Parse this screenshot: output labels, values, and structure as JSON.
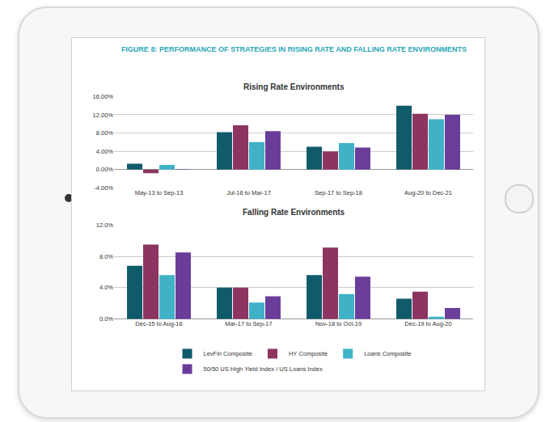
{
  "figure_title": "FIGURE 8: PERFORMANCE OF STRATEGIES IN RISING RATE AND FALLING RATE ENVIRONMENTS",
  "chart_data": [
    {
      "type": "bar",
      "title": "Rising Rate Environments",
      "categories": [
        "May-13 to Sep-13",
        "Jul-16 to Mar-17",
        "Sep-17 to Sep-18",
        "Aug-20 to Dec-21"
      ],
      "series": [
        {
          "name": "LevFin Composite",
          "color": "#0f5a6b",
          "values": [
            1.3,
            8.2,
            5.0,
            14.0
          ]
        },
        {
          "name": "HY Composite",
          "color": "#8c3560",
          "values": [
            -0.8,
            9.7,
            4.0,
            12.2
          ]
        },
        {
          "name": "Loans Composite",
          "color": "#3fb2c8",
          "values": [
            1.0,
            6.0,
            5.8,
            11.0
          ]
        },
        {
          "name": "50/50 US High Yield Index / US Loans Index",
          "color": "#6a3d9a",
          "values": [
            0.1,
            8.4,
            4.8,
            12.0
          ]
        }
      ],
      "ylim": [
        -4,
        16
      ],
      "yticks": [
        {
          "value": -4,
          "label": "-4.00%"
        },
        {
          "value": 0,
          "label": "0.00%"
        },
        {
          "value": 4,
          "label": "4.00%"
        },
        {
          "value": 8,
          "label": "8.00%"
        },
        {
          "value": 12,
          "label": "12.00%"
        },
        {
          "value": 16,
          "label": "16.00%"
        }
      ],
      "grid": true
    },
    {
      "type": "bar",
      "title": "Falling Rate Environments",
      "categories": [
        "Dec-15 to Aug-16",
        "Mar-17 to Sep-17",
        "Nov-18 to Oct-19",
        "Dec-19 to Aug-20"
      ],
      "series": [
        {
          "name": "LevFin Composite",
          "color": "#0f5a6b",
          "values": [
            6.8,
            4.0,
            5.6,
            2.6
          ]
        },
        {
          "name": "HY Composite",
          "color": "#8c3560",
          "values": [
            9.5,
            4.0,
            9.1,
            3.5
          ]
        },
        {
          "name": "Loans Composite",
          "color": "#3fb2c8",
          "values": [
            5.6,
            2.1,
            3.2,
            0.3
          ]
        },
        {
          "name": "50/50 US High Yield Index / US Loans Index",
          "color": "#6a3d9a",
          "values": [
            8.5,
            2.9,
            5.4,
            1.4
          ]
        }
      ],
      "ylim": [
        0,
        12
      ],
      "yticks": [
        {
          "value": 0,
          "label": "0.0%"
        },
        {
          "value": 4,
          "label": "4.0%"
        },
        {
          "value": 8,
          "label": "8.0%"
        },
        {
          "value": 12,
          "label": "12.0%"
        }
      ],
      "grid": true,
      "legend": "bottom"
    }
  ]
}
